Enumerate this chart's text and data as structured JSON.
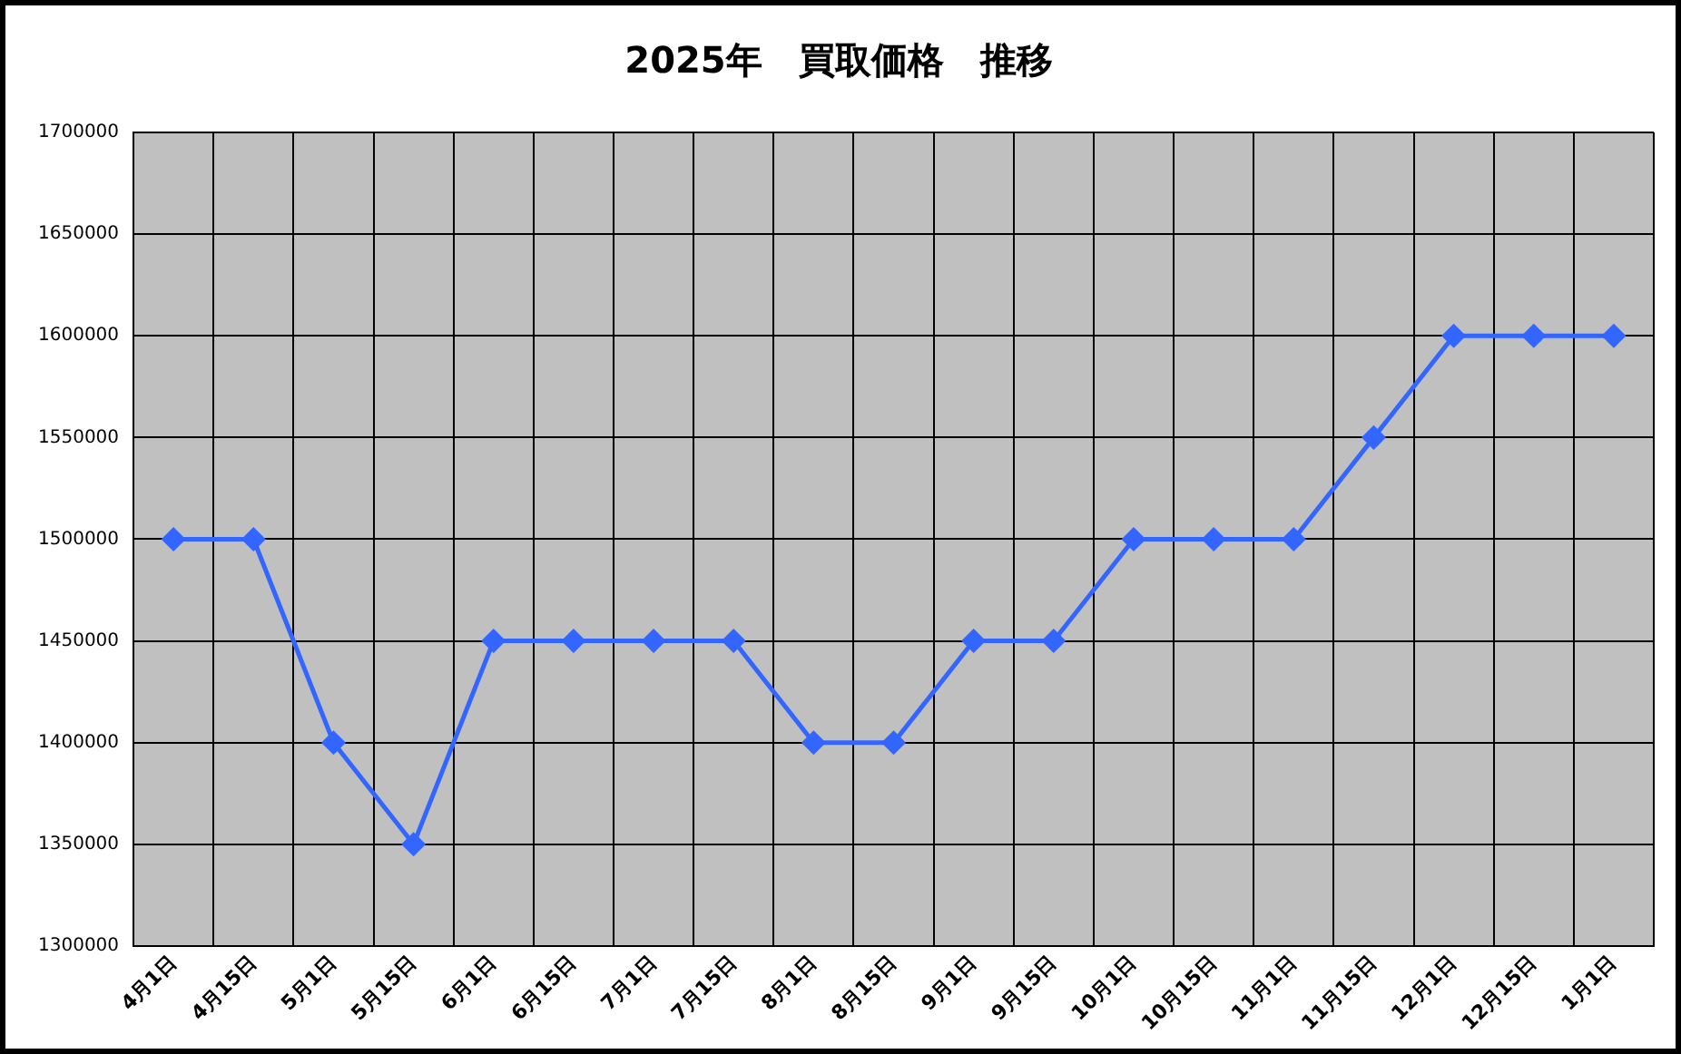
{
  "chart_data": {
    "type": "line",
    "title": "2025年　買取価格　推移",
    "categories": [
      "4月1日",
      "4月15日",
      "5月1日",
      "5月15日",
      "6月1日",
      "6月15日",
      "7月1日",
      "7月15日",
      "8月1日",
      "8月15日",
      "9月1日",
      "9月15日",
      "10月1日",
      "10月15日",
      "11月1日",
      "11月15日",
      "12月1日",
      "12月15日",
      "1月1日"
    ],
    "series": [
      {
        "color": "#3366ff",
        "values": [
          1500000,
          1500000,
          1400000,
          1350000,
          1450000,
          1450000,
          1450000,
          1450000,
          1400000,
          1400000,
          1450000,
          1450000,
          1500000,
          1500000,
          1500000,
          1550000,
          1600000,
          1600000,
          1600000
        ]
      }
    ],
    "ylim": [
      1300000,
      1700000
    ],
    "yticks": [
      1300000,
      1350000,
      1400000,
      1450000,
      1500000,
      1550000,
      1600000,
      1650000,
      1700000
    ],
    "grid": true,
    "legend": false,
    "marker": "diamond",
    "line_style": "solid"
  }
}
